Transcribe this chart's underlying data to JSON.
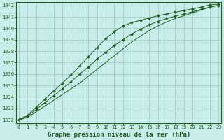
{
  "title": "Graphe pression niveau de la mer (hPa)",
  "bg_color": "#c8ece8",
  "grid_color": "#9dc8c4",
  "line_color": "#1e5e1e",
  "marker_color": "#1e5e1e",
  "ylim": [
    1031.7,
    1042.3
  ],
  "xlim": [
    -0.3,
    23.3
  ],
  "yticks": [
    1032,
    1033,
    1034,
    1035,
    1036,
    1037,
    1038,
    1039,
    1040,
    1041,
    1042
  ],
  "xticks": [
    0,
    1,
    2,
    3,
    4,
    5,
    6,
    7,
    8,
    9,
    10,
    11,
    12,
    13,
    14,
    15,
    16,
    17,
    18,
    19,
    20,
    21,
    22,
    23
  ],
  "line1_x": [
    0,
    1,
    2,
    3,
    4,
    5,
    6,
    7,
    8,
    9,
    10,
    11,
    12,
    13,
    14,
    15,
    16,
    17,
    18,
    19,
    20,
    21,
    22,
    23
  ],
  "line1_y": [
    1032.0,
    1032.4,
    1033.1,
    1033.8,
    1034.5,
    1035.2,
    1035.9,
    1036.7,
    1037.5,
    1038.3,
    1039.1,
    1039.7,
    1040.2,
    1040.5,
    1040.7,
    1040.9,
    1041.1,
    1041.25,
    1041.4,
    1041.55,
    1041.7,
    1041.85,
    1042.05,
    1042.1
  ],
  "line2_x": [
    0,
    1,
    2,
    3,
    4,
    5,
    6,
    7,
    8,
    9,
    10,
    11,
    12,
    13,
    14,
    15,
    16,
    17,
    18,
    19,
    20,
    21,
    22,
    23
  ],
  "line2_y": [
    1032.0,
    1032.3,
    1032.9,
    1033.5,
    1034.1,
    1034.7,
    1035.3,
    1036.0,
    1036.6,
    1037.3,
    1037.9,
    1038.5,
    1039.0,
    1039.5,
    1039.9,
    1040.3,
    1040.6,
    1040.85,
    1041.05,
    1041.25,
    1041.45,
    1041.65,
    1041.85,
    1042.0
  ],
  "line3_x": [
    0,
    1,
    2,
    3,
    4,
    5,
    6,
    7,
    8,
    9,
    10,
    11,
    12,
    13,
    14,
    15,
    16,
    17,
    18,
    19,
    20,
    21,
    22,
    23
  ],
  "line3_y": [
    1032.0,
    1032.2,
    1032.7,
    1033.2,
    1033.7,
    1034.2,
    1034.7,
    1035.2,
    1035.8,
    1036.4,
    1037.0,
    1037.6,
    1038.2,
    1038.8,
    1039.3,
    1039.8,
    1040.2,
    1040.55,
    1040.85,
    1041.1,
    1041.35,
    1041.6,
    1041.85,
    1042.0
  ],
  "title_fontsize": 6.5,
  "tick_fontsize": 5.0,
  "ylabel_fontsize": 5.0
}
